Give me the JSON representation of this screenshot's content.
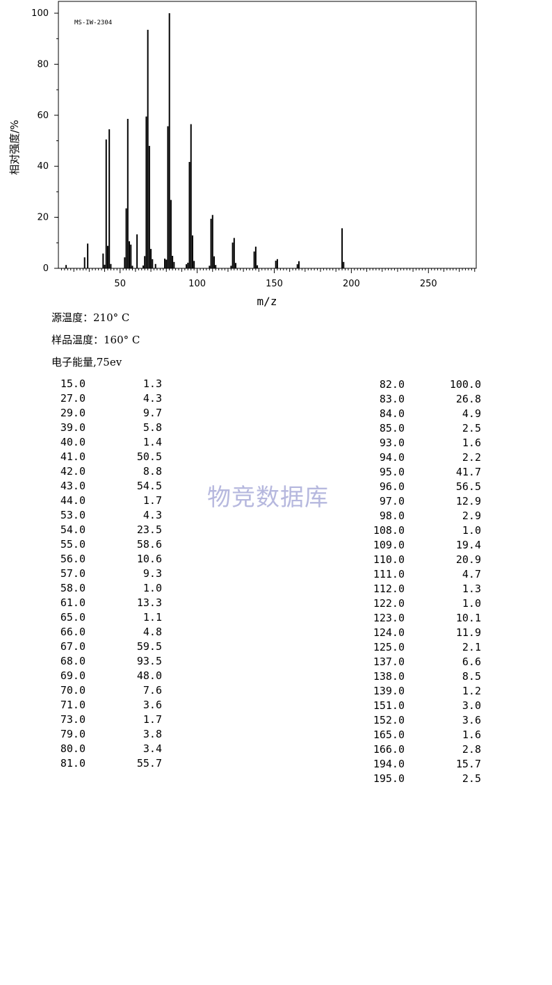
{
  "chart_data": {
    "type": "bar",
    "title": "MS-IW-2304",
    "xlabel": "m/z",
    "ylabel": "相对强度/%",
    "xlim": [
      10,
      281
    ],
    "ylim": [
      0,
      100
    ],
    "x_ticks": [
      50,
      100,
      150,
      200,
      250
    ],
    "y_ticks": [
      0,
      20,
      40,
      60,
      80,
      100
    ],
    "grid": false,
    "peaks": [
      {
        "mz": 15.0,
        "abundance": 1.3
      },
      {
        "mz": 27.0,
        "abundance": 4.3
      },
      {
        "mz": 29.0,
        "abundance": 9.7
      },
      {
        "mz": 39.0,
        "abundance": 5.8
      },
      {
        "mz": 40.0,
        "abundance": 1.4
      },
      {
        "mz": 41.0,
        "abundance": 50.5
      },
      {
        "mz": 42.0,
        "abundance": 8.8
      },
      {
        "mz": 43.0,
        "abundance": 54.5
      },
      {
        "mz": 44.0,
        "abundance": 1.7
      },
      {
        "mz": 53.0,
        "abundance": 4.3
      },
      {
        "mz": 54.0,
        "abundance": 23.5
      },
      {
        "mz": 55.0,
        "abundance": 58.6
      },
      {
        "mz": 56.0,
        "abundance": 10.6
      },
      {
        "mz": 57.0,
        "abundance": 9.3
      },
      {
        "mz": 58.0,
        "abundance": 1.0
      },
      {
        "mz": 61.0,
        "abundance": 13.3
      },
      {
        "mz": 65.0,
        "abundance": 1.1
      },
      {
        "mz": 66.0,
        "abundance": 4.8
      },
      {
        "mz": 67.0,
        "abundance": 59.5
      },
      {
        "mz": 68.0,
        "abundance": 93.5
      },
      {
        "mz": 69.0,
        "abundance": 48.0
      },
      {
        "mz": 70.0,
        "abundance": 7.6
      },
      {
        "mz": 71.0,
        "abundance": 3.6
      },
      {
        "mz": 73.0,
        "abundance": 1.7
      },
      {
        "mz": 79.0,
        "abundance": 3.8
      },
      {
        "mz": 80.0,
        "abundance": 3.4
      },
      {
        "mz": 81.0,
        "abundance": 55.7
      },
      {
        "mz": 82.0,
        "abundance": 100.0
      },
      {
        "mz": 83.0,
        "abundance": 26.8
      },
      {
        "mz": 84.0,
        "abundance": 4.9
      },
      {
        "mz": 85.0,
        "abundance": 2.5
      },
      {
        "mz": 93.0,
        "abundance": 1.6
      },
      {
        "mz": 94.0,
        "abundance": 2.2
      },
      {
        "mz": 95.0,
        "abundance": 41.7
      },
      {
        "mz": 96.0,
        "abundance": 56.5
      },
      {
        "mz": 97.0,
        "abundance": 12.9
      },
      {
        "mz": 98.0,
        "abundance": 2.9
      },
      {
        "mz": 108.0,
        "abundance": 1.0
      },
      {
        "mz": 109.0,
        "abundance": 19.4
      },
      {
        "mz": 110.0,
        "abundance": 20.9
      },
      {
        "mz": 111.0,
        "abundance": 4.7
      },
      {
        "mz": 112.0,
        "abundance": 1.3
      },
      {
        "mz": 122.0,
        "abundance": 1.0
      },
      {
        "mz": 123.0,
        "abundance": 10.1
      },
      {
        "mz": 124.0,
        "abundance": 11.9
      },
      {
        "mz": 125.0,
        "abundance": 2.1
      },
      {
        "mz": 137.0,
        "abundance": 6.6
      },
      {
        "mz": 138.0,
        "abundance": 8.5
      },
      {
        "mz": 139.0,
        "abundance": 1.2
      },
      {
        "mz": 151.0,
        "abundance": 3.0
      },
      {
        "mz": 152.0,
        "abundance": 3.6
      },
      {
        "mz": 165.0,
        "abundance": 1.6
      },
      {
        "mz": 166.0,
        "abundance": 2.8
      },
      {
        "mz": 194.0,
        "abundance": 15.7
      },
      {
        "mz": 195.0,
        "abundance": 2.5
      }
    ],
    "colors": {
      "line": "#000000"
    }
  },
  "conditions": {
    "source_temp": "源温度：210° C",
    "sample_temp": "样品温度：160° C",
    "electron_energy": "电子能量,75ev"
  },
  "table": {
    "left": [
      [
        "15.0",
        "1.3"
      ],
      [
        "27.0",
        "4.3"
      ],
      [
        "29.0",
        "9.7"
      ],
      [
        "39.0",
        "5.8"
      ],
      [
        "40.0",
        "1.4"
      ],
      [
        "41.0",
        "50.5"
      ],
      [
        "42.0",
        "8.8"
      ],
      [
        "43.0",
        "54.5"
      ],
      [
        "44.0",
        "1.7"
      ],
      [
        "53.0",
        "4.3"
      ],
      [
        "54.0",
        "23.5"
      ],
      [
        "55.0",
        "58.6"
      ],
      [
        "56.0",
        "10.6"
      ],
      [
        "57.0",
        "9.3"
      ],
      [
        "58.0",
        "1.0"
      ],
      [
        "61.0",
        "13.3"
      ],
      [
        "65.0",
        "1.1"
      ],
      [
        "66.0",
        "4.8"
      ],
      [
        "67.0",
        "59.5"
      ],
      [
        "68.0",
        "93.5"
      ],
      [
        "69.0",
        "48.0"
      ],
      [
        "70.0",
        "7.6"
      ],
      [
        "71.0",
        "3.6"
      ],
      [
        "73.0",
        "1.7"
      ],
      [
        "79.0",
        "3.8"
      ],
      [
        "80.0",
        "3.4"
      ],
      [
        "81.0",
        "55.7"
      ]
    ],
    "right": [
      [
        "82.0",
        "100.0"
      ],
      [
        "83.0",
        "26.8"
      ],
      [
        "84.0",
        "4.9"
      ],
      [
        "85.0",
        "2.5"
      ],
      [
        "93.0",
        "1.6"
      ],
      [
        "94.0",
        "2.2"
      ],
      [
        "95.0",
        "41.7"
      ],
      [
        "96.0",
        "56.5"
      ],
      [
        "97.0",
        "12.9"
      ],
      [
        "98.0",
        "2.9"
      ],
      [
        "108.0",
        "1.0"
      ],
      [
        "109.0",
        "19.4"
      ],
      [
        "110.0",
        "20.9"
      ],
      [
        "111.0",
        "4.7"
      ],
      [
        "112.0",
        "1.3"
      ],
      [
        "122.0",
        "1.0"
      ],
      [
        "123.0",
        "10.1"
      ],
      [
        "124.0",
        "11.9"
      ],
      [
        "125.0",
        "2.1"
      ],
      [
        "137.0",
        "6.6"
      ],
      [
        "138.0",
        "8.5"
      ],
      [
        "139.0",
        "1.2"
      ],
      [
        "151.0",
        "3.0"
      ],
      [
        "152.0",
        "3.6"
      ],
      [
        "165.0",
        "1.6"
      ],
      [
        "166.0",
        "2.8"
      ],
      [
        "194.0",
        "15.7"
      ],
      [
        "195.0",
        "2.5"
      ]
    ]
  },
  "watermark": "物竞数据库"
}
